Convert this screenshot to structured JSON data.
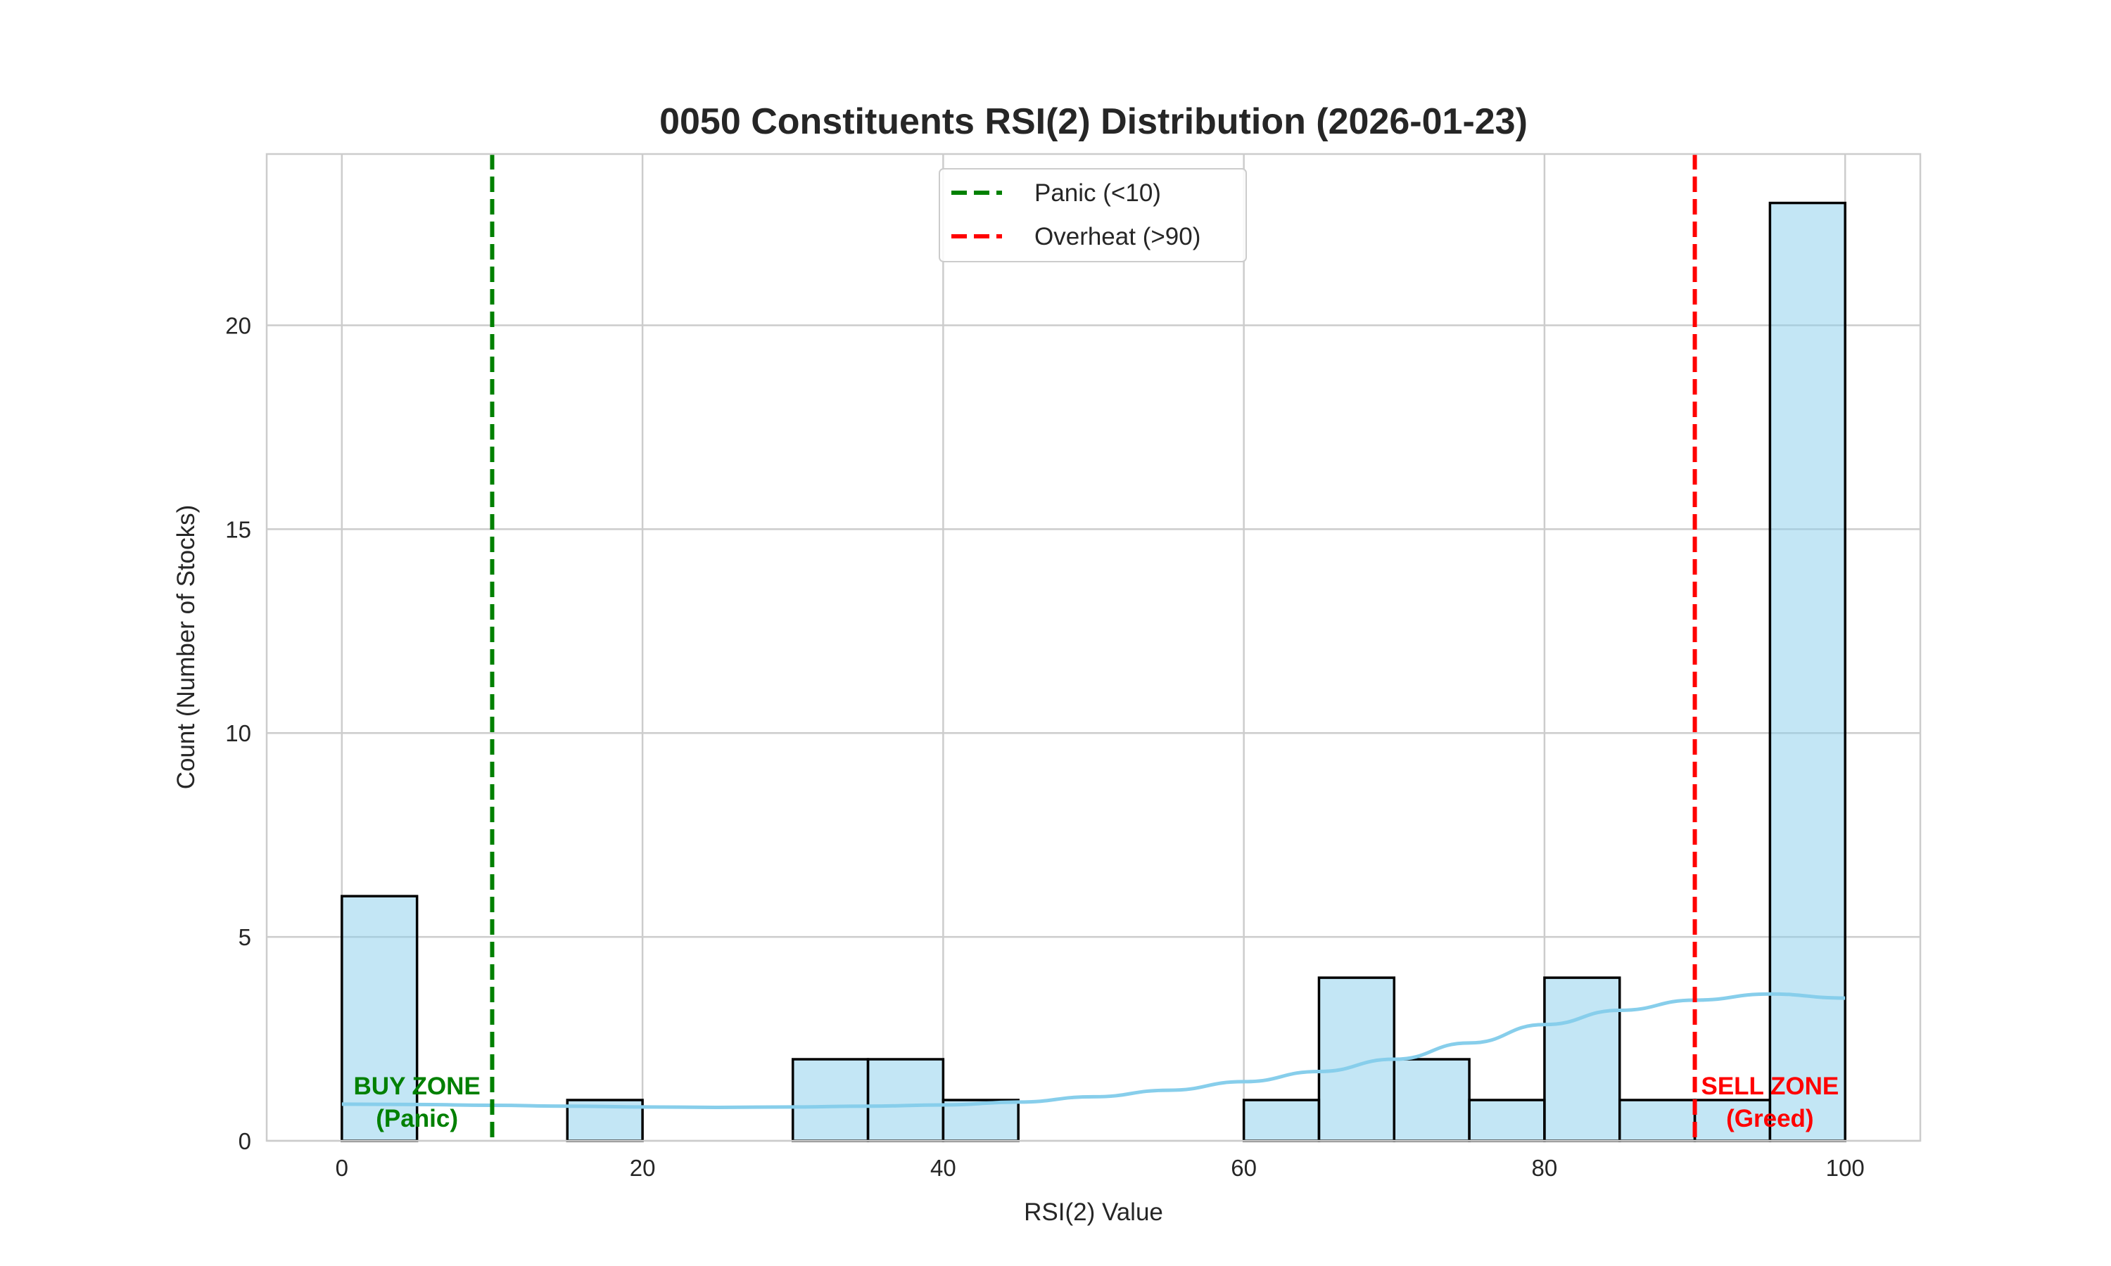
{
  "chart_data": {
    "type": "bar",
    "title": "0050 Constituents RSI(2) Distribution (2026-01-23)",
    "xlabel": "RSI(2) Value",
    "ylabel": "Count (Number of Stocks)",
    "xlim": [
      -5,
      105
    ],
    "ylim": [
      0,
      24.2
    ],
    "xticks": [
      0,
      20,
      40,
      60,
      80,
      100
    ],
    "yticks": [
      0,
      5,
      10,
      15,
      20
    ],
    "grid": true,
    "bin_edges": [
      0,
      5,
      10,
      15,
      20,
      25,
      30,
      35,
      40,
      45,
      50,
      55,
      60,
      65,
      70,
      75,
      80,
      85,
      90,
      95,
      100
    ],
    "counts": [
      6,
      0,
      0,
      1,
      0,
      0,
      2,
      2,
      1,
      0,
      0,
      0,
      1,
      4,
      2,
      1,
      4,
      1,
      1,
      23
    ],
    "bar_color": "#87CEEB",
    "kde": {
      "x": [
        0,
        5,
        10,
        15,
        20,
        25,
        30,
        35,
        40,
        45,
        50,
        55,
        60,
        65,
        70,
        75,
        80,
        85,
        90,
        95,
        100
      ],
      "y": [
        0.9,
        0.89,
        0.87,
        0.85,
        0.83,
        0.82,
        0.83,
        0.85,
        0.88,
        0.95,
        1.08,
        1.24,
        1.45,
        1.7,
        2.0,
        2.4,
        2.85,
        3.2,
        3.45,
        3.6,
        3.5
      ],
      "color": "#87CEEB"
    },
    "vlines": [
      {
        "x": 10,
        "label": "Panic (<10)",
        "color": "#008000"
      },
      {
        "x": 90,
        "label": "Overheat (>90)",
        "color": "#FF0000"
      }
    ],
    "legend_position": "top-center",
    "annotations": [
      {
        "x": 5,
        "y": 1,
        "line1": "BUY ZONE",
        "line2": "(Panic)",
        "color": "#008000"
      },
      {
        "x": 95,
        "y": 1,
        "line1": "SELL ZONE",
        "line2": "(Greed)",
        "color": "#FF0000"
      }
    ]
  }
}
